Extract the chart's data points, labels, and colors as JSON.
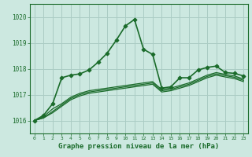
{
  "background_color": "#cce8e0",
  "grid_color": "#aaccc4",
  "line_color": "#1a6b2a",
  "xlabel": "Graphe pression niveau de la mer (hPa)",
  "xlim": [
    -0.5,
    23.5
  ],
  "ylim": [
    1015.5,
    1020.5
  ],
  "yticks": [
    1016,
    1017,
    1018,
    1019,
    1020
  ],
  "xticks": [
    0,
    1,
    2,
    3,
    4,
    5,
    6,
    7,
    8,
    9,
    10,
    11,
    12,
    13,
    14,
    15,
    16,
    17,
    18,
    19,
    20,
    21,
    22,
    23
  ],
  "series": [
    {
      "x": [
        0,
        1,
        2,
        3,
        4,
        5,
        6,
        7,
        8,
        9,
        10,
        11,
        12,
        13,
        14,
        15,
        16,
        17,
        18,
        19,
        20,
        21,
        22,
        23
      ],
      "y": [
        1016.0,
        1016.15,
        1016.45,
        1016.65,
        1016.9,
        1017.05,
        1017.15,
        1017.2,
        1017.25,
        1017.3,
        1017.35,
        1017.4,
        1017.45,
        1017.5,
        1017.2,
        1017.25,
        1017.35,
        1017.45,
        1017.6,
        1017.75,
        1017.85,
        1017.78,
        1017.72,
        1017.6
      ],
      "marker": false,
      "linewidth": 0.9
    },
    {
      "x": [
        0,
        1,
        2,
        3,
        4,
        5,
        6,
        7,
        8,
        9,
        10,
        11,
        12,
        13,
        14,
        15,
        16,
        17,
        18,
        19,
        20,
        21,
        22,
        23
      ],
      "y": [
        1016.0,
        1016.1,
        1016.35,
        1016.6,
        1016.85,
        1017.0,
        1017.1,
        1017.15,
        1017.2,
        1017.25,
        1017.3,
        1017.35,
        1017.4,
        1017.45,
        1017.15,
        1017.2,
        1017.3,
        1017.4,
        1017.55,
        1017.7,
        1017.8,
        1017.73,
        1017.67,
        1017.55
      ],
      "marker": false,
      "linewidth": 0.9
    },
    {
      "x": [
        0,
        1,
        2,
        3,
        4,
        5,
        6,
        7,
        8,
        9,
        10,
        11,
        12,
        13,
        14,
        15,
        16,
        17,
        18,
        19,
        20,
        21,
        22,
        23
      ],
      "y": [
        1016.0,
        1016.1,
        1016.3,
        1016.55,
        1016.8,
        1016.95,
        1017.05,
        1017.1,
        1017.15,
        1017.2,
        1017.25,
        1017.3,
        1017.35,
        1017.4,
        1017.1,
        1017.15,
        1017.25,
        1017.35,
        1017.5,
        1017.65,
        1017.75,
        1017.68,
        1017.62,
        1017.5
      ],
      "marker": false,
      "linewidth": 0.9
    },
    {
      "x": [
        0,
        1,
        2,
        3,
        4,
        5,
        6,
        7,
        8,
        9,
        10,
        11,
        12,
        13,
        14,
        15,
        16,
        17,
        18,
        19,
        20,
        21,
        22,
        23
      ],
      "y": [
        1016.0,
        1016.2,
        1016.65,
        1017.65,
        1017.75,
        1017.8,
        1017.95,
        1018.25,
        1018.6,
        1019.1,
        1019.65,
        1019.9,
        1018.75,
        1018.55,
        1017.25,
        1017.3,
        1017.65,
        1017.65,
        1017.95,
        1018.05,
        1018.1,
        1017.85,
        1017.82,
        1017.72
      ],
      "marker": true,
      "linewidth": 1.2
    }
  ]
}
